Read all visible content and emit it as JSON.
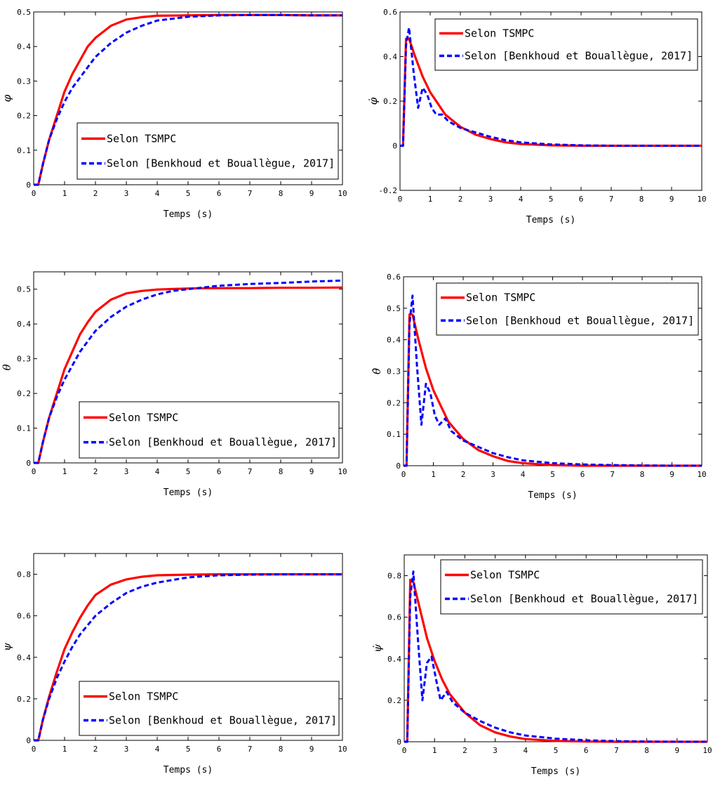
{
  "chart_data": [
    {
      "type": "line",
      "ylabel": "φ",
      "xlabel": "Temps (s)",
      "xlim": [
        0,
        10
      ],
      "ylim": [
        0,
        0.5
      ],
      "xticks": [
        "0",
        "1",
        "2",
        "3",
        "4",
        "5",
        "6",
        "7",
        "8",
        "9",
        "10"
      ],
      "yticks": [
        "0",
        "0.1",
        "0.2",
        "0.3",
        "0.4",
        "0.5"
      ],
      "legend": [
        "Selon TSMPC",
        "Selon [Benkhoud et Bouallègue, 2017]"
      ],
      "legend_placement": "bottom-right",
      "series": [
        {
          "name": "Selon TSMPC",
          "color": "#ff0000",
          "style": "solid",
          "x": [
            0,
            0.15,
            0.3,
            0.5,
            0.75,
            1,
            1.25,
            1.5,
            1.75,
            2,
            2.5,
            3,
            3.5,
            4,
            5,
            6,
            7,
            8,
            9,
            10
          ],
          "y": [
            0,
            0,
            0.06,
            0.13,
            0.2,
            0.27,
            0.32,
            0.36,
            0.4,
            0.425,
            0.46,
            0.478,
            0.485,
            0.489,
            0.49,
            0.491,
            0.491,
            0.491,
            0.49,
            0.49
          ]
        },
        {
          "name": "Selon [Benkhoud et Bouallègue, 2017]",
          "color": "#0000ff",
          "style": "dashed",
          "x": [
            0,
            0.15,
            0.3,
            0.5,
            0.75,
            1,
            1.25,
            1.5,
            2,
            2.5,
            3,
            3.5,
            4,
            5,
            6,
            7,
            8,
            9,
            10
          ],
          "y": [
            0,
            0,
            0.06,
            0.13,
            0.19,
            0.24,
            0.28,
            0.31,
            0.37,
            0.41,
            0.44,
            0.46,
            0.475,
            0.486,
            0.49,
            0.491,
            0.491,
            0.49,
            0.49
          ]
        }
      ]
    },
    {
      "type": "line",
      "ylabel": "φ̇",
      "xlabel": "Temps (s)",
      "xlim": [
        0,
        10
      ],
      "ylim": [
        -0.2,
        0.6
      ],
      "xticks": [
        "0",
        "1",
        "2",
        "3",
        "4",
        "5",
        "6",
        "7",
        "8",
        "9",
        "10"
      ],
      "yticks": [
        "-0.2",
        "0",
        "0.2",
        "0.4",
        "0.6"
      ],
      "legend": [
        "Selon TSMPC",
        "Selon [Benkhoud et Bouallègue, 2017]"
      ],
      "legend_placement": "top-right",
      "series": [
        {
          "name": "Selon TSMPC",
          "color": "#ff0000",
          "style": "solid",
          "x": [
            0,
            0.1,
            0.2,
            0.3,
            0.5,
            0.75,
            1,
            1.25,
            1.5,
            2,
            2.5,
            3,
            3.5,
            4,
            5,
            6,
            7,
            8,
            9,
            10
          ],
          "y": [
            0,
            0,
            0.48,
            0.48,
            0.4,
            0.31,
            0.24,
            0.19,
            0.14,
            0.085,
            0.05,
            0.03,
            0.015,
            0.008,
            0.002,
            0,
            0,
            0,
            0,
            0
          ]
        },
        {
          "name": "Selon [Benkhoud et Bouallègue, 2017]",
          "color": "#0000ff",
          "style": "dashed",
          "x": [
            0,
            0.1,
            0.2,
            0.3,
            0.45,
            0.6,
            0.75,
            0.9,
            1.05,
            1.2,
            1.4,
            1.6,
            2,
            2.5,
            3,
            3.5,
            4,
            5,
            6,
            7,
            8,
            9,
            10
          ],
          "y": [
            0,
            0,
            0.45,
            0.53,
            0.33,
            0.17,
            0.26,
            0.23,
            0.17,
            0.14,
            0.14,
            0.11,
            0.08,
            0.06,
            0.04,
            0.025,
            0.015,
            0.006,
            0.002,
            0,
            0,
            0,
            0
          ]
        }
      ]
    },
    {
      "type": "line",
      "ylabel": "θ",
      "xlabel": "Temps (s)",
      "xlim": [
        0,
        10
      ],
      "ylim": [
        0,
        0.55
      ],
      "xticks": [
        "0",
        "1",
        "2",
        "3",
        "4",
        "5",
        "6",
        "7",
        "8",
        "9",
        "10"
      ],
      "yticks": [
        "0",
        "0.1",
        "0.2",
        "0.3",
        "0.4",
        "0.5"
      ],
      "legend": [
        "Selon TSMPC",
        "Selon [Benkhoud et Bouallègue, 2017]"
      ],
      "legend_placement": "bottom-right",
      "series": [
        {
          "name": "Selon TSMPC",
          "color": "#ff0000",
          "style": "solid",
          "x": [
            0,
            0.15,
            0.3,
            0.5,
            0.75,
            1,
            1.25,
            1.5,
            1.75,
            2,
            2.5,
            3,
            3.5,
            4,
            5,
            6,
            7,
            8,
            9,
            10
          ],
          "y": [
            0,
            0,
            0.06,
            0.13,
            0.2,
            0.27,
            0.32,
            0.37,
            0.405,
            0.435,
            0.47,
            0.488,
            0.495,
            0.499,
            0.502,
            0.503,
            0.503,
            0.504,
            0.504,
            0.505
          ]
        },
        {
          "name": "Selon [Benkhoud et Bouallègue, 2017]",
          "color": "#0000ff",
          "style": "dashed",
          "x": [
            0,
            0.15,
            0.3,
            0.5,
            0.75,
            1,
            1.25,
            1.5,
            2,
            2.5,
            3,
            3.5,
            4,
            4.5,
            5,
            6,
            7,
            8,
            9,
            10
          ],
          "y": [
            0,
            0,
            0.06,
            0.13,
            0.19,
            0.24,
            0.28,
            0.32,
            0.38,
            0.42,
            0.45,
            0.47,
            0.485,
            0.495,
            0.5,
            0.51,
            0.515,
            0.518,
            0.522,
            0.525
          ]
        }
      ]
    },
    {
      "type": "line",
      "ylabel": "θ̇",
      "xlabel": "Temps (s)",
      "xlim": [
        0,
        10
      ],
      "ylim": [
        0,
        0.6
      ],
      "xticks": [
        "0",
        "1",
        "2",
        "3",
        "4",
        "5",
        "6",
        "7",
        "8",
        "9",
        "10"
      ],
      "yticks": [
        "0",
        "0.1",
        "0.2",
        "0.3",
        "0.4",
        "0.5",
        "0.6"
      ],
      "legend": [
        "Selon TSMPC",
        "Selon [Benkhoud et Bouallègue, 2017]"
      ],
      "legend_placement": "top-right",
      "series": [
        {
          "name": "Selon TSMPC",
          "color": "#ff0000",
          "style": "solid",
          "x": [
            0,
            0.1,
            0.2,
            0.3,
            0.5,
            0.75,
            1,
            1.25,
            1.5,
            2,
            2.5,
            3,
            3.5,
            4,
            5,
            6,
            7,
            8,
            9,
            10
          ],
          "y": [
            0,
            0,
            0.48,
            0.48,
            0.4,
            0.31,
            0.24,
            0.19,
            0.14,
            0.085,
            0.05,
            0.03,
            0.015,
            0.008,
            0.002,
            0,
            0,
            0,
            0,
            0
          ]
        },
        {
          "name": "Selon [Benkhoud et Bouallègue, 2017]",
          "color": "#0000ff",
          "style": "dashed",
          "x": [
            0,
            0.1,
            0.2,
            0.3,
            0.45,
            0.6,
            0.75,
            0.9,
            1.05,
            1.2,
            1.4,
            1.6,
            2,
            2.5,
            3,
            3.5,
            4,
            5,
            6,
            7,
            8,
            9,
            10
          ],
          "y": [
            0,
            0,
            0.45,
            0.54,
            0.32,
            0.13,
            0.26,
            0.23,
            0.16,
            0.13,
            0.15,
            0.11,
            0.08,
            0.06,
            0.04,
            0.027,
            0.017,
            0.008,
            0.004,
            0.002,
            0.001,
            0,
            0
          ]
        }
      ]
    },
    {
      "type": "line",
      "ylabel": "ψ",
      "xlabel": "Temps (s)",
      "xlim": [
        0,
        10
      ],
      "ylim": [
        0,
        0.9
      ],
      "xticks": [
        "0",
        "1",
        "2",
        "3",
        "4",
        "5",
        "6",
        "7",
        "8",
        "9",
        "10"
      ],
      "yticks": [
        "0",
        "0.2",
        "0.4",
        "0.6",
        "0.8"
      ],
      "legend": [
        "Selon TSMPC",
        "Selon [Benkhoud et Bouallègue, 2017]"
      ],
      "legend_placement": "bottom-right",
      "series": [
        {
          "name": "Selon TSMPC",
          "color": "#ff0000",
          "style": "solid",
          "x": [
            0,
            0.15,
            0.3,
            0.5,
            0.75,
            1,
            1.25,
            1.5,
            1.75,
            2,
            2.5,
            3,
            3.5,
            4,
            5,
            6,
            7,
            8,
            9,
            10
          ],
          "y": [
            0,
            0,
            0.1,
            0.21,
            0.33,
            0.44,
            0.52,
            0.59,
            0.65,
            0.7,
            0.75,
            0.775,
            0.788,
            0.795,
            0.798,
            0.8,
            0.8,
            0.8,
            0.8,
            0.8
          ]
        },
        {
          "name": "Selon [Benkhoud et Bouallègue, 2017]",
          "color": "#0000ff",
          "style": "dashed",
          "x": [
            0,
            0.15,
            0.3,
            0.5,
            0.75,
            1,
            1.25,
            1.5,
            2,
            2.5,
            3,
            3.5,
            4,
            5,
            6,
            7,
            8,
            9,
            10
          ],
          "y": [
            0,
            0,
            0.1,
            0.2,
            0.3,
            0.38,
            0.45,
            0.51,
            0.6,
            0.66,
            0.71,
            0.74,
            0.76,
            0.785,
            0.795,
            0.798,
            0.8,
            0.8,
            0.8
          ]
        }
      ]
    },
    {
      "type": "line",
      "ylabel": "ψ̇",
      "xlabel": "Temps (s)",
      "xlim": [
        0,
        10
      ],
      "ylim": [
        0,
        0.9
      ],
      "xticks": [
        "0",
        "1",
        "2",
        "3",
        "4",
        "5",
        "6",
        "7",
        "8",
        "9",
        "10"
      ],
      "yticks": [
        "0",
        "0.2",
        "0.4",
        "0.6",
        "0.8"
      ],
      "legend": [
        "Selon TSMPC",
        "Selon [Benkhoud et Bouallègue, 2017]"
      ],
      "legend_placement": "top-right",
      "series": [
        {
          "name": "Selon TSMPC",
          "color": "#ff0000",
          "style": "solid",
          "x": [
            0,
            0.1,
            0.2,
            0.3,
            0.5,
            0.75,
            1,
            1.25,
            1.5,
            2,
            2.5,
            3,
            3.5,
            4,
            5,
            6,
            7,
            8,
            9,
            10
          ],
          "y": [
            0,
            0,
            0.78,
            0.77,
            0.65,
            0.5,
            0.39,
            0.3,
            0.23,
            0.14,
            0.08,
            0.045,
            0.025,
            0.013,
            0.004,
            0.001,
            0,
            0,
            0,
            0
          ]
        },
        {
          "name": "Selon [Benkhoud et Bouallègue, 2017]",
          "color": "#0000ff",
          "style": "dashed",
          "x": [
            0,
            0.1,
            0.2,
            0.3,
            0.45,
            0.6,
            0.75,
            0.9,
            1.05,
            1.2,
            1.4,
            1.6,
            2,
            2.5,
            3,
            3.5,
            4,
            5,
            6,
            7,
            8,
            9,
            10
          ],
          "y": [
            0,
            0,
            0.7,
            0.82,
            0.5,
            0.2,
            0.38,
            0.41,
            0.3,
            0.2,
            0.24,
            0.19,
            0.14,
            0.1,
            0.068,
            0.045,
            0.03,
            0.015,
            0.007,
            0.003,
            0.001,
            0,
            0
          ]
        }
      ]
    }
  ]
}
